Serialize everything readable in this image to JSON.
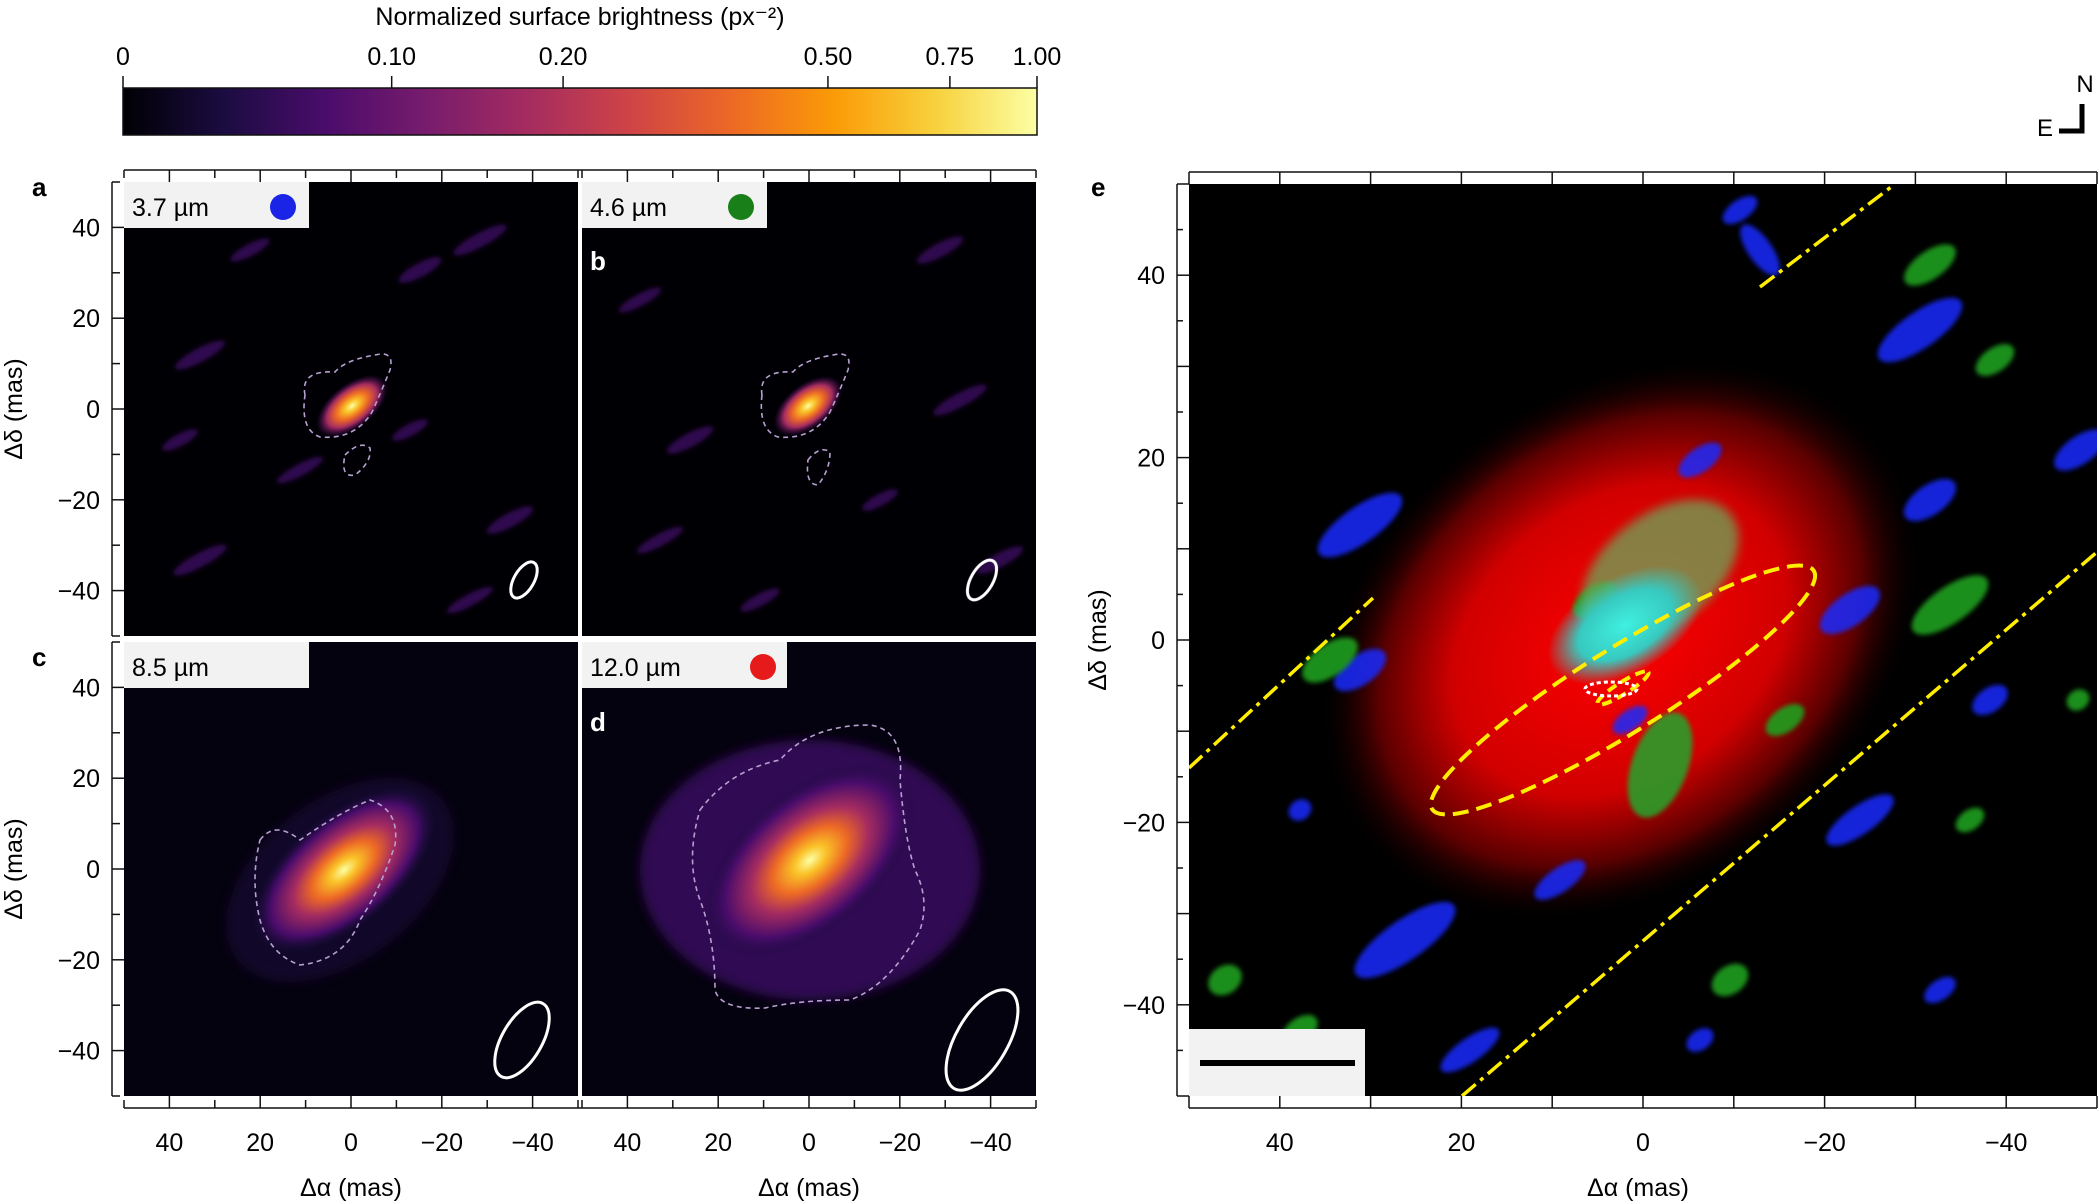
{
  "colorbar": {
    "title": "Normalized surface brightness (px⁻²)",
    "ticks": [
      {
        "label": "0",
        "value": 0
      },
      {
        "label": "0.10",
        "value": 0.1
      },
      {
        "label": "0.20",
        "value": 0.2
      },
      {
        "label": "0.50",
        "value": 0.5
      },
      {
        "label": "0.75",
        "value": 0.75
      },
      {
        "label": "1.00",
        "value": 1.0
      }
    ]
  },
  "compass": {
    "north": "N",
    "east": "E"
  },
  "panels": {
    "a": {
      "letter": "a",
      "wavelength": "3.7 µm",
      "marker_color": "#1a24e6"
    },
    "b": {
      "letter": "b",
      "wavelength": "4.6 µm",
      "marker_color": "#198019"
    },
    "c": {
      "letter": "c",
      "wavelength": "8.5 µm",
      "marker_color": ""
    },
    "d": {
      "letter": "d",
      "wavelength": "12.0 µm",
      "marker_color": "#e61a1a"
    },
    "e": {
      "letter": "e"
    }
  },
  "axes": {
    "ylabel": "Δδ (mas)",
    "xlabel": "Δα (mas)",
    "small_y_ticks": [
      "40",
      "20",
      "0",
      "−20",
      "−40"
    ],
    "small_x_ticks": [
      "40",
      "20",
      "0",
      "−20",
      "−40"
    ],
    "large_y_ticks": [
      "40",
      "20",
      "0",
      "−20",
      "−40"
    ],
    "large_x_ticks": [
      "40",
      "20",
      "0",
      "−20",
      "−40"
    ],
    "range_mas": [
      -50,
      50
    ]
  },
  "colors": {
    "cmap": [
      "#000004",
      "#1b0c41",
      "#4a0c6b",
      "#781c6d",
      "#a52c60",
      "#cf4446",
      "#ed6925",
      "#fb9b06",
      "#f7d13d",
      "#fcffa4"
    ],
    "rgb_blue": "#1a28ff",
    "rgb_green": "#1f9e1f",
    "rgb_red": "#ff0000",
    "overlay_yellow": "#ffee00"
  }
}
